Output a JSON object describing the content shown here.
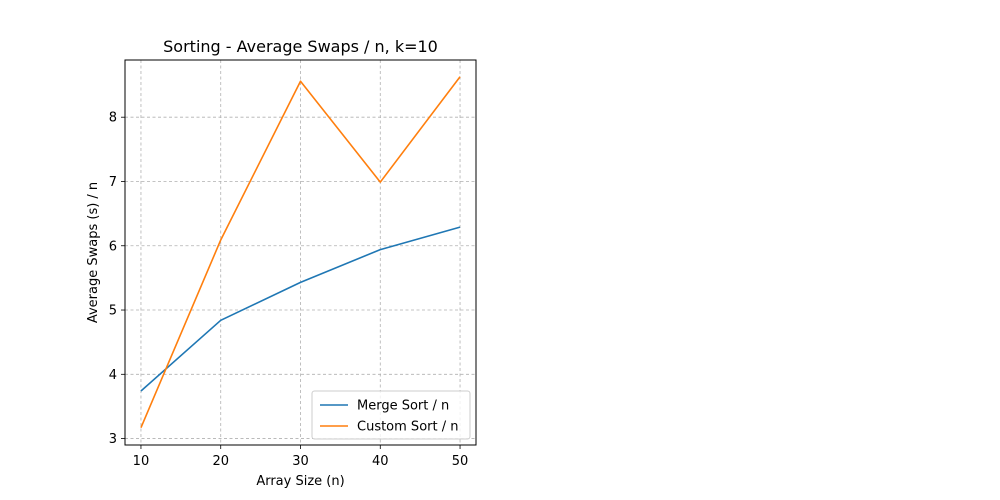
{
  "chart_data": {
    "type": "line",
    "title": "Sorting - Average Swaps / n, k=10",
    "xlabel": "Array Size (n)",
    "ylabel": "Average Swaps (s) / n",
    "x": [
      10,
      20,
      30,
      40,
      50
    ],
    "xticks": [
      "10",
      "20",
      "30",
      "40",
      "50"
    ],
    "yticks": [
      "3",
      "4",
      "5",
      "6",
      "7",
      "8"
    ],
    "xlim": [
      8,
      52
    ],
    "ylim": [
      2.9,
      8.89
    ],
    "grid": true,
    "legend_position": "lower-right",
    "series": [
      {
        "name": "Merge Sort / n",
        "color": "#1f77b4",
        "values": [
          3.74,
          4.84,
          5.43,
          5.94,
          6.29
        ]
      },
      {
        "name": "Custom Sort / n",
        "color": "#ff7f0e",
        "values": [
          3.17,
          6.09,
          8.56,
          6.99,
          8.63
        ]
      }
    ]
  }
}
